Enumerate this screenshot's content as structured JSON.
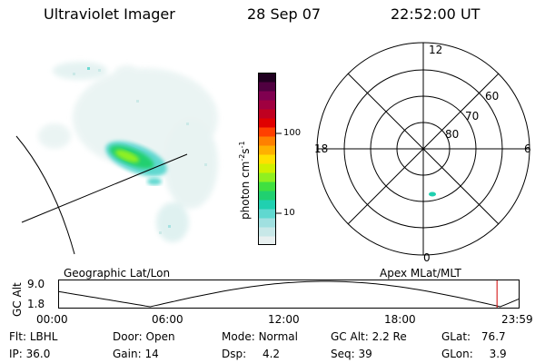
{
  "header": {
    "instrument": "Ultraviolet Imager",
    "date": "28 Sep 07",
    "time": "22:52:00 UT"
  },
  "colorbar": {
    "unit_label": "photon cm",
    "unit_exp1": "-2",
    "unit_s": "s",
    "unit_exp2": "-1",
    "tick_100": "100",
    "tick_10": "10",
    "colors": [
      "#e8f0f0",
      "#c8e8e8",
      "#a0e0e0",
      "#60d8d0",
      "#20d0b0",
      "#20d070",
      "#40e040",
      "#90f020",
      "#d0f000",
      "#ffe000",
      "#ffb000",
      "#ff8000",
      "#ff4000",
      "#e00000",
      "#c00020",
      "#a00040",
      "#800050",
      "#500040",
      "#200020"
    ]
  },
  "polar": {
    "mlt_12": "12",
    "mlt_18": "18",
    "mlt_6": "6",
    "mlt_0": "0",
    "lat_60": "60",
    "lat_70": "70",
    "lat_80": "80"
  },
  "orbit": {
    "left_label": "Geographic Lat/Lon",
    "right_label": "Apex MLat/MLT",
    "y_axis_label": "GC Alt",
    "y_max": "9.0",
    "y_min": "1.8",
    "x_ticks": [
      "00:00",
      "06:00",
      "12:00",
      "18:00",
      "23:59"
    ],
    "current_time_fraction": 0.953
  },
  "info": {
    "flt_label": "Flt:",
    "flt_value": "LBHL",
    "ip_label": "IP:",
    "ip_value": "36.0",
    "door_label": "Door:",
    "door_value": "Open",
    "gain_label": "Gain:",
    "gain_value": "14",
    "mode_label": "Mode:",
    "mode_value": "Normal",
    "dsp_label": "Dsp:",
    "dsp_value": "4.2",
    "gcalt_label": "GC Alt:",
    "gcalt_value": "2.2 Re",
    "seq_label": "Seq:",
    "seq_value": "39",
    "glat_label": "GLat:",
    "glat_value": "76.7",
    "glon_label": "GLon:",
    "glon_value": "3.9"
  }
}
